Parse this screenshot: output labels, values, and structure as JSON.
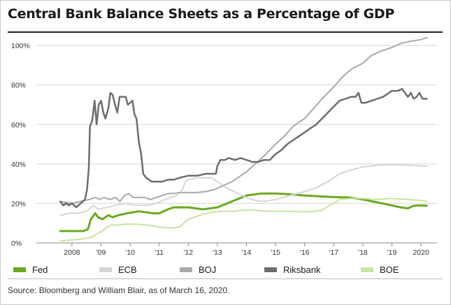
{
  "chart_data": {
    "type": "line",
    "title": "Central Bank Balance Sheets as a Percentage of GDP",
    "source": "Source: Bloomberg and William Blair, as of March 16, 2020.",
    "xlabel": "",
    "ylabel": "",
    "x_tick_labels": [
      "2008",
      "'09",
      "'10",
      "'11",
      "'12",
      "'13",
      "'14",
      "'15",
      "'16",
      "'17",
      "'18",
      "'19",
      "2020"
    ],
    "x_tick_years": [
      2008,
      2009,
      2010,
      2011,
      2012,
      2013,
      2014,
      2015,
      2016,
      2017,
      2018,
      2019,
      2020
    ],
    "xlim": [
      2007.45,
      2020.55
    ],
    "ylim": [
      0,
      105
    ],
    "y_ticks": [
      0,
      20,
      40,
      60,
      80,
      100
    ],
    "y_tick_labels": [
      "0%",
      "20%",
      "40%",
      "60%",
      "80%",
      "100%"
    ],
    "grid": "horizontal",
    "legend_position": "bottom",
    "series": [
      {
        "name": "Fed",
        "color": "#6aaa1e",
        "width": 3,
        "points": [
          [
            2007.6,
            6
          ],
          [
            2008.0,
            6
          ],
          [
            2008.4,
            6
          ],
          [
            2008.55,
            7
          ],
          [
            2008.65,
            12
          ],
          [
            2008.8,
            15
          ],
          [
            2008.9,
            13
          ],
          [
            2009.05,
            12
          ],
          [
            2009.25,
            14
          ],
          [
            2009.4,
            13
          ],
          [
            2009.6,
            14
          ],
          [
            2009.9,
            15
          ],
          [
            2010.3,
            16
          ],
          [
            2010.8,
            15
          ],
          [
            2011.0,
            15
          ],
          [
            2011.3,
            17
          ],
          [
            2011.5,
            18
          ],
          [
            2012.0,
            18
          ],
          [
            2012.5,
            17
          ],
          [
            2013.0,
            18
          ],
          [
            2013.5,
            21
          ],
          [
            2014.0,
            24
          ],
          [
            2014.5,
            25
          ],
          [
            2015.0,
            25
          ],
          [
            2015.5,
            24.6
          ],
          [
            2016.0,
            24
          ],
          [
            2016.5,
            23.6
          ],
          [
            2017.0,
            23.2
          ],
          [
            2017.5,
            23
          ],
          [
            2018.0,
            22
          ],
          [
            2018.5,
            20.5
          ],
          [
            2019.0,
            19
          ],
          [
            2019.3,
            18
          ],
          [
            2019.55,
            17.5
          ],
          [
            2019.75,
            18.8
          ],
          [
            2020.0,
            19
          ],
          [
            2020.2,
            18.8
          ]
        ]
      },
      {
        "name": "ECB",
        "color": "#d6d6d6",
        "width": 2,
        "points": [
          [
            2007.6,
            14
          ],
          [
            2007.9,
            15
          ],
          [
            2008.2,
            15
          ],
          [
            2008.5,
            16
          ],
          [
            2008.75,
            19
          ],
          [
            2008.9,
            17
          ],
          [
            2009.2,
            18
          ],
          [
            2009.5,
            19
          ],
          [
            2009.8,
            20
          ],
          [
            2010.2,
            19
          ],
          [
            2010.6,
            19
          ],
          [
            2010.9,
            20
          ],
          [
            2011.2,
            22
          ],
          [
            2011.6,
            24
          ],
          [
            2011.8,
            27
          ],
          [
            2011.9,
            31
          ],
          [
            2012.0,
            32
          ],
          [
            2012.3,
            33
          ],
          [
            2012.5,
            33
          ],
          [
            2012.8,
            33
          ],
          [
            2013.0,
            31
          ],
          [
            2013.3,
            28
          ],
          [
            2013.7,
            25
          ],
          [
            2014.0,
            23
          ],
          [
            2014.3,
            21.5
          ],
          [
            2014.6,
            21
          ],
          [
            2015.0,
            22
          ],
          [
            2015.5,
            24
          ],
          [
            2016.0,
            26
          ],
          [
            2016.4,
            28
          ],
          [
            2016.8,
            31
          ],
          [
            2017.2,
            35
          ],
          [
            2017.6,
            37
          ],
          [
            2018.0,
            38.5
          ],
          [
            2018.4,
            39.2
          ],
          [
            2018.8,
            39.5
          ],
          [
            2019.2,
            39.5
          ],
          [
            2019.6,
            39.3
          ],
          [
            2020.0,
            39
          ],
          [
            2020.2,
            38.8
          ]
        ]
      },
      {
        "name": "BOJ",
        "color": "#a9a9a9",
        "width": 2,
        "points": [
          [
            2007.6,
            21
          ],
          [
            2007.8,
            20.5
          ],
          [
            2008.0,
            20
          ],
          [
            2008.3,
            21
          ],
          [
            2008.6,
            22
          ],
          [
            2008.8,
            23
          ],
          [
            2008.95,
            22
          ],
          [
            2009.1,
            23
          ],
          [
            2009.3,
            22
          ],
          [
            2009.5,
            23
          ],
          [
            2009.65,
            21
          ],
          [
            2009.8,
            24
          ],
          [
            2009.95,
            25
          ],
          [
            2010.1,
            23
          ],
          [
            2010.3,
            23
          ],
          [
            2010.5,
            23
          ],
          [
            2010.7,
            22
          ],
          [
            2010.9,
            23
          ],
          [
            2011.1,
            24
          ],
          [
            2011.3,
            25
          ],
          [
            2011.5,
            25
          ],
          [
            2011.7,
            25.5
          ],
          [
            2012.0,
            25.5
          ],
          [
            2012.3,
            25.5
          ],
          [
            2012.6,
            26
          ],
          [
            2012.9,
            27
          ],
          [
            2013.2,
            29
          ],
          [
            2013.5,
            31
          ],
          [
            2013.8,
            34
          ],
          [
            2014.0,
            36
          ],
          [
            2014.3,
            40
          ],
          [
            2014.6,
            44
          ],
          [
            2015.0,
            50
          ],
          [
            2015.3,
            54
          ],
          [
            2015.6,
            59
          ],
          [
            2016.0,
            63
          ],
          [
            2016.3,
            68
          ],
          [
            2016.6,
            73
          ],
          [
            2017.0,
            79
          ],
          [
            2017.3,
            84
          ],
          [
            2017.6,
            88
          ],
          [
            2018.0,
            91
          ],
          [
            2018.3,
            95
          ],
          [
            2018.6,
            97
          ],
          [
            2019.0,
            99
          ],
          [
            2019.3,
            101
          ],
          [
            2019.6,
            102
          ],
          [
            2020.0,
            103
          ],
          [
            2020.2,
            104
          ]
        ]
      },
      {
        "name": "Riksbank",
        "color": "#6d6d6d",
        "width": 2.5,
        "points": [
          [
            2007.6,
            21
          ],
          [
            2007.7,
            19
          ],
          [
            2007.8,
            20
          ],
          [
            2007.9,
            19
          ],
          [
            2008.0,
            20
          ],
          [
            2008.15,
            18
          ],
          [
            2008.3,
            20
          ],
          [
            2008.45,
            22
          ],
          [
            2008.52,
            27
          ],
          [
            2008.58,
            38
          ],
          [
            2008.62,
            59
          ],
          [
            2008.7,
            62
          ],
          [
            2008.78,
            72
          ],
          [
            2008.85,
            60
          ],
          [
            2008.92,
            70
          ],
          [
            2009.0,
            72
          ],
          [
            2009.08,
            66
          ],
          [
            2009.15,
            63
          ],
          [
            2009.25,
            68
          ],
          [
            2009.32,
            76
          ],
          [
            2009.4,
            75
          ],
          [
            2009.48,
            70
          ],
          [
            2009.56,
            66
          ],
          [
            2009.64,
            74
          ],
          [
            2009.75,
            74
          ],
          [
            2009.85,
            74
          ],
          [
            2009.92,
            70
          ],
          [
            2010.0,
            71
          ],
          [
            2010.08,
            72
          ],
          [
            2010.15,
            65
          ],
          [
            2010.22,
            63
          ],
          [
            2010.3,
            51
          ],
          [
            2010.38,
            45
          ],
          [
            2010.45,
            35
          ],
          [
            2010.55,
            33
          ],
          [
            2010.65,
            32
          ],
          [
            2010.75,
            31
          ],
          [
            2010.9,
            31
          ],
          [
            2011.1,
            31
          ],
          [
            2011.3,
            32
          ],
          [
            2011.5,
            32
          ],
          [
            2011.7,
            33
          ],
          [
            2012.0,
            34
          ],
          [
            2012.3,
            34
          ],
          [
            2012.6,
            35
          ],
          [
            2012.85,
            35
          ],
          [
            2012.95,
            35
          ],
          [
            2013.0,
            39
          ],
          [
            2013.1,
            42
          ],
          [
            2013.25,
            42
          ],
          [
            2013.4,
            43
          ],
          [
            2013.6,
            42
          ],
          [
            2013.8,
            43
          ],
          [
            2014.0,
            42
          ],
          [
            2014.2,
            41
          ],
          [
            2014.4,
            41
          ],
          [
            2014.6,
            42
          ],
          [
            2014.8,
            42
          ],
          [
            2015.0,
            45
          ],
          [
            2015.2,
            47
          ],
          [
            2015.4,
            50
          ],
          [
            2015.6,
            52
          ],
          [
            2015.8,
            54
          ],
          [
            2016.0,
            56
          ],
          [
            2016.2,
            58
          ],
          [
            2016.4,
            60
          ],
          [
            2016.6,
            63
          ],
          [
            2016.8,
            66
          ],
          [
            2017.0,
            69
          ],
          [
            2017.2,
            72
          ],
          [
            2017.4,
            73
          ],
          [
            2017.6,
            74
          ],
          [
            2017.75,
            74
          ],
          [
            2017.85,
            76
          ],
          [
            2017.95,
            71
          ],
          [
            2018.1,
            71
          ],
          [
            2018.3,
            72
          ],
          [
            2018.5,
            73
          ],
          [
            2018.7,
            74
          ],
          [
            2018.9,
            76
          ],
          [
            2019.0,
            77
          ],
          [
            2019.2,
            77
          ],
          [
            2019.35,
            78
          ],
          [
            2019.45,
            76
          ],
          [
            2019.55,
            74
          ],
          [
            2019.65,
            76
          ],
          [
            2019.75,
            73
          ],
          [
            2019.85,
            74
          ],
          [
            2019.95,
            76
          ],
          [
            2020.05,
            73
          ],
          [
            2020.2,
            73
          ]
        ]
      },
      {
        "name": "BOE",
        "color": "#c8e4a2",
        "width": 2,
        "points": [
          [
            2007.6,
            1
          ],
          [
            2008.0,
            1.5
          ],
          [
            2008.4,
            2
          ],
          [
            2008.7,
            3
          ],
          [
            2008.9,
            5
          ],
          [
            2009.05,
            6
          ],
          [
            2009.2,
            8
          ],
          [
            2009.35,
            9
          ],
          [
            2009.6,
            9
          ],
          [
            2009.8,
            9.5
          ],
          [
            2010.2,
            9.5
          ],
          [
            2010.6,
            9
          ],
          [
            2011.0,
            8
          ],
          [
            2011.4,
            7.5
          ],
          [
            2011.7,
            8
          ],
          [
            2011.85,
            10
          ],
          [
            2012.0,
            12
          ],
          [
            2012.2,
            13
          ],
          [
            2012.5,
            14.5
          ],
          [
            2012.8,
            15.5
          ],
          [
            2013.1,
            16
          ],
          [
            2013.5,
            16
          ],
          [
            2013.9,
            16.5
          ],
          [
            2014.3,
            16.5
          ],
          [
            2014.7,
            16
          ],
          [
            2015.0,
            16
          ],
          [
            2015.4,
            16
          ],
          [
            2015.8,
            15.8
          ],
          [
            2016.2,
            15.8
          ],
          [
            2016.6,
            16.5
          ],
          [
            2016.85,
            19
          ],
          [
            2017.0,
            20
          ],
          [
            2017.2,
            22
          ],
          [
            2017.6,
            22.5
          ],
          [
            2018.0,
            22.5
          ],
          [
            2018.5,
            22
          ],
          [
            2019.0,
            22.5
          ],
          [
            2019.5,
            22
          ],
          [
            2020.0,
            21.5
          ],
          [
            2020.2,
            21
          ]
        ]
      }
    ]
  }
}
